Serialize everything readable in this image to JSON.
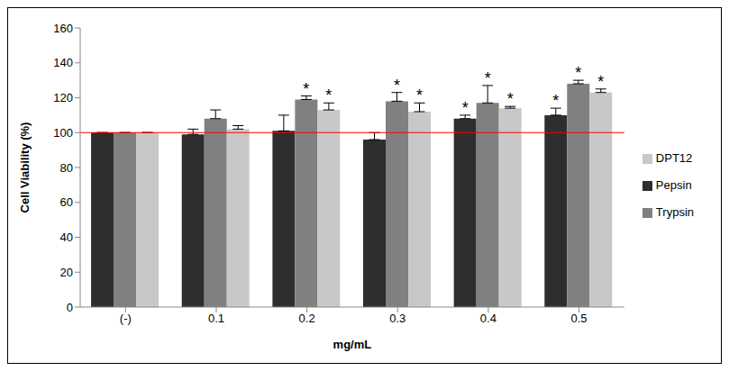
{
  "chart_data": {
    "type": "bar",
    "x_label": "mg/mL",
    "y_label": "Cell Viability (%)",
    "categories": [
      "(-)",
      "0.1",
      "0.2",
      "0.3",
      "0.4",
      "0.5"
    ],
    "series": [
      {
        "name": "Pepsin",
        "color": "#2e2e2e",
        "values": [
          100,
          99,
          101,
          96,
          108,
          110
        ],
        "errors": [
          0,
          3,
          9,
          4,
          2,
          4
        ],
        "significant": [
          false,
          false,
          false,
          false,
          true,
          true
        ]
      },
      {
        "name": "Trypsin",
        "color": "#808080",
        "values": [
          100,
          108,
          119,
          118,
          117,
          128
        ],
        "errors": [
          0,
          5,
          2,
          5,
          10,
          2
        ],
        "significant": [
          false,
          false,
          true,
          true,
          true,
          true
        ]
      },
      {
        "name": "DPT12",
        "color": "#c8c8c8",
        "values": [
          100,
          102,
          113,
          112,
          114,
          123
        ],
        "errors": [
          0,
          2,
          4,
          5,
          1,
          2
        ],
        "significant": [
          false,
          false,
          true,
          true,
          true,
          true
        ]
      }
    ],
    "annotation": "*",
    "reference_line": {
      "value": 100,
      "color": "#ff0000"
    },
    "ylim": [
      0,
      160
    ],
    "yticks": [
      0,
      20,
      40,
      60,
      80,
      100,
      120,
      140,
      160
    ],
    "grid": false,
    "legend": "right"
  }
}
